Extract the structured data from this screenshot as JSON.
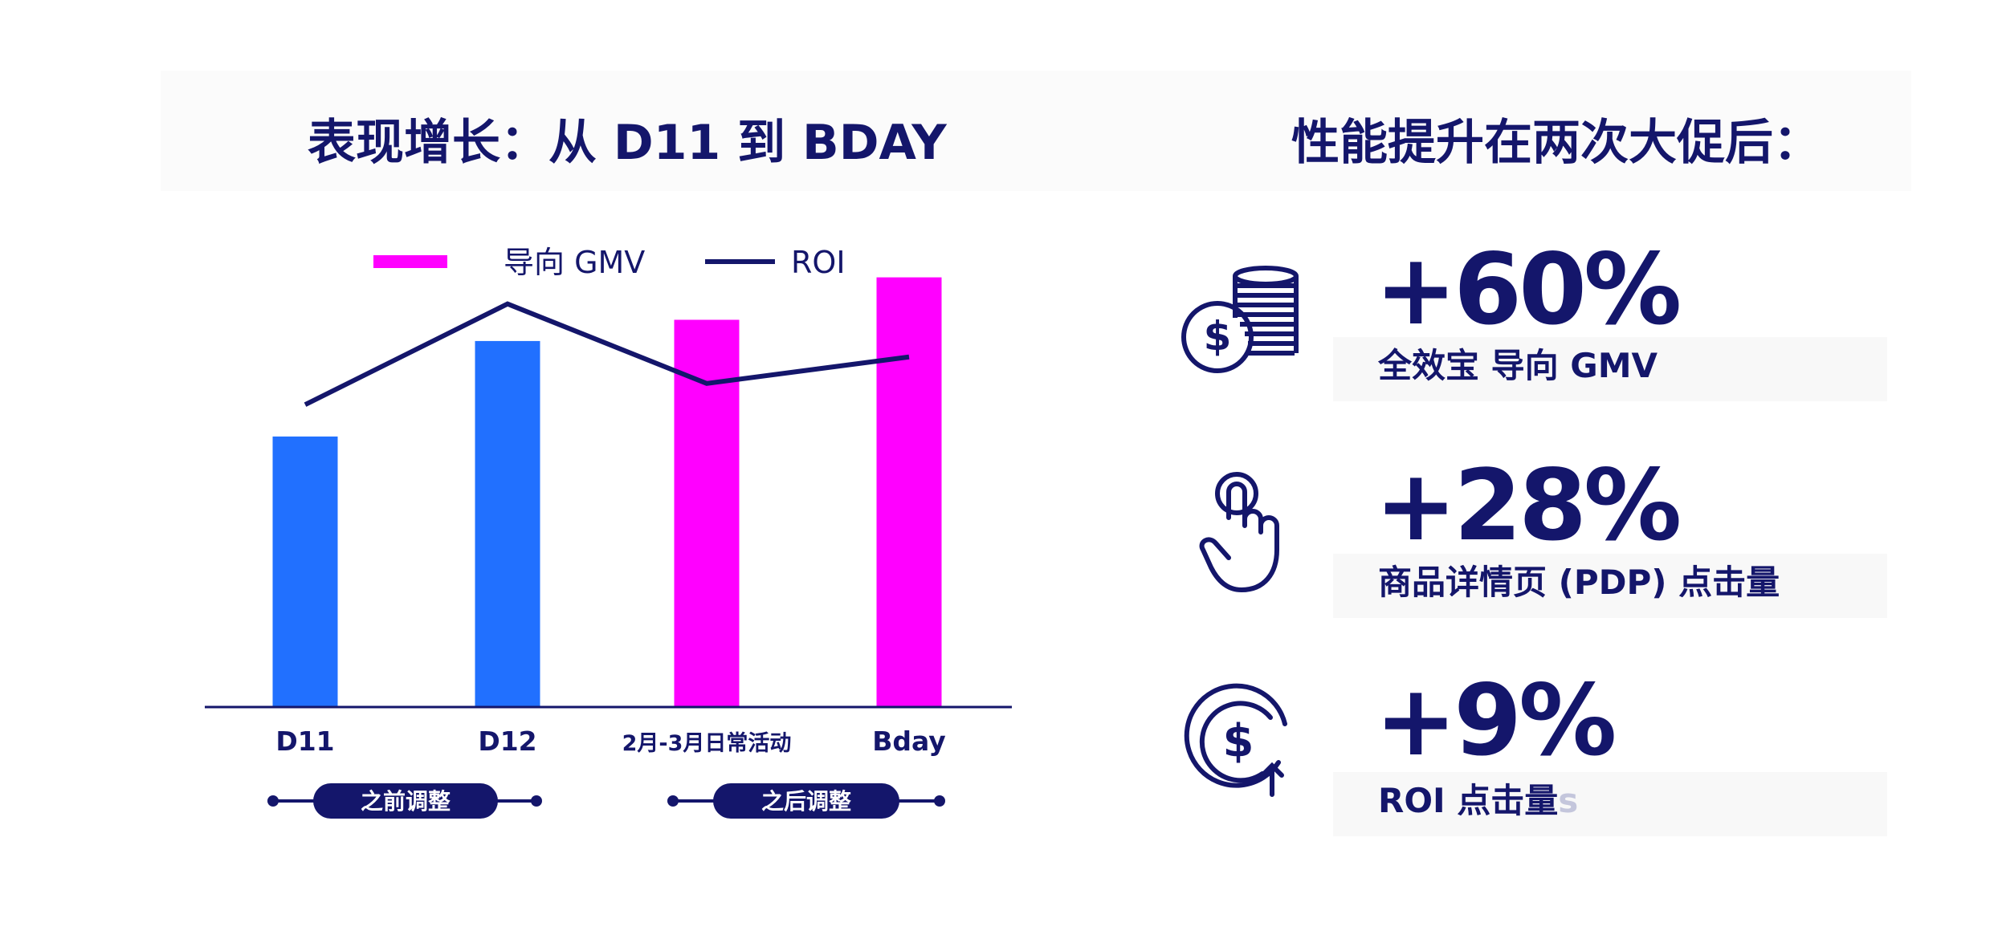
{
  "titles": {
    "left": "表现增长：从 D11 到 BDAY",
    "right": "性能提升在两次大促后："
  },
  "colors": {
    "navy": "#14166b",
    "blue": "#2170ff",
    "magenta": "#ff00ff"
  },
  "chart_data": {
    "type": "bar",
    "categories": [
      "D11",
      "D12",
      "2月-3月日常活动",
      "Bday"
    ],
    "series": [
      {
        "name": "导向 GMV",
        "kind": "bar",
        "values": [
          51,
          69,
          73,
          81
        ],
        "colors": [
          "#2170ff",
          "#2170ff",
          "#ff00ff",
          "#ff00ff"
        ]
      },
      {
        "name": "ROI",
        "kind": "line",
        "values": [
          57,
          76,
          61,
          66
        ],
        "color": "#14166b"
      }
    ],
    "ylim": [
      0,
      100
    ],
    "grid": false,
    "legend": "top",
    "phases": [
      {
        "label": "之前调整",
        "categories": [
          "D11",
          "D12"
        ]
      },
      {
        "label": "之后调整",
        "categories": [
          "2月-3月日常活动",
          "Bday"
        ]
      }
    ]
  },
  "stats": [
    {
      "icon": "coins-dollar-icon",
      "value": "+60%",
      "label": "全效宝 导向 GMV",
      "ghost": ""
    },
    {
      "icon": "hand-tap-icon",
      "value": "+28%",
      "label": "商品详情页 (PDP) 点击量",
      "ghost": ""
    },
    {
      "icon": "dollar-growth-icon",
      "value": "+9%",
      "label": "ROI 点击量",
      "ghost": "s"
    }
  ]
}
